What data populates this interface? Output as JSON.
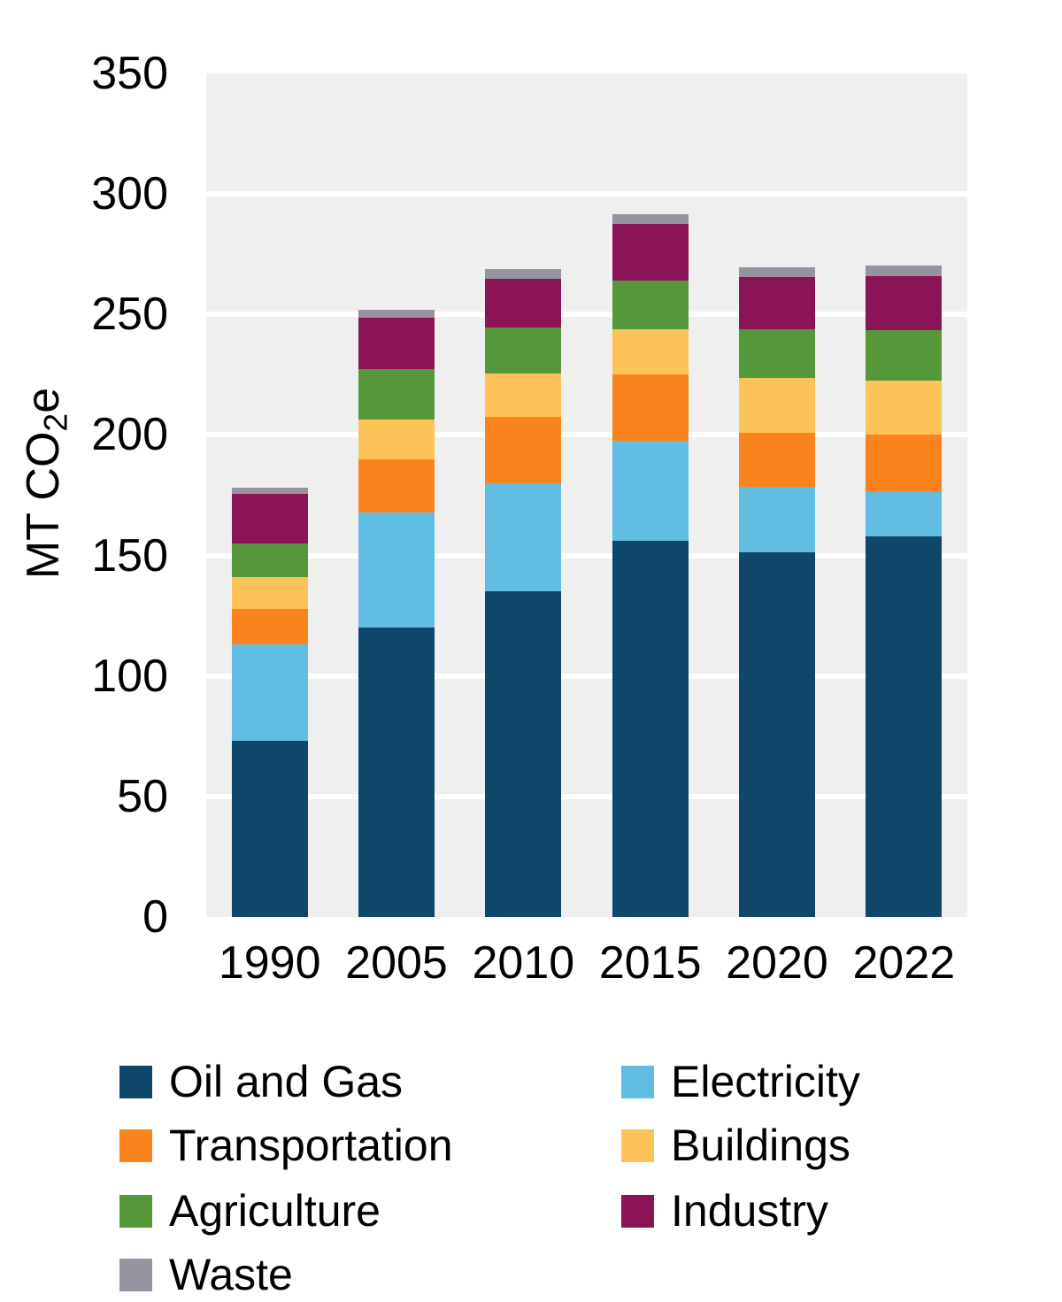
{
  "colors": {
    "background": "#ffffff",
    "panel_bg": "#f0efef",
    "gridline": "#ffffff",
    "text": "#000000"
  },
  "chart_data": {
    "type": "bar",
    "stacked": true,
    "title": "",
    "ylabel": "MT CO2e",
    "ylabel_parts": {
      "prefix": "MT CO",
      "sub": "2",
      "suffix": "e"
    },
    "xlabel": "",
    "categories": [
      "1990",
      "2005",
      "2010",
      "2015",
      "2020",
      "2022"
    ],
    "series": [
      {
        "name": "Oil and Gas",
        "color": "#0f476a",
        "values": [
          73,
          120,
          135,
          156,
          151.5,
          158
        ]
      },
      {
        "name": "Electricity",
        "color": "#62bde3",
        "values": [
          40,
          48,
          45,
          41.5,
          27,
          18.5
        ]
      },
      {
        "name": "Transportation",
        "color": "#fb831d",
        "values": [
          15,
          22,
          27.5,
          27.5,
          22.5,
          23.5
        ]
      },
      {
        "name": "Buildings",
        "color": "#fdc258",
        "values": [
          13,
          16.5,
          18,
          19,
          22.5,
          22.5
        ]
      },
      {
        "name": "Agriculture",
        "color": "#54983a",
        "values": [
          14,
          21,
          19,
          20,
          20.5,
          21
        ]
      },
      {
        "name": "Industry",
        "color": "#8b1457",
        "values": [
          20.5,
          21,
          20.5,
          23.5,
          21.5,
          22.5
        ]
      },
      {
        "name": "Waste",
        "color": "#96939e",
        "values": [
          2.5,
          3.5,
          4,
          4,
          4,
          4.5
        ]
      }
    ],
    "totals": [
      178,
      252,
      269,
      291.5,
      269.5,
      270.5
    ],
    "ylim": [
      0,
      350
    ],
    "yticks": [
      0,
      50,
      100,
      150,
      200,
      250,
      300,
      350
    ],
    "grid": "horizontal-white-lines",
    "legend_position": "bottom-left",
    "legend_columns": [
      [
        "Oil and Gas",
        "Transportation",
        "Agriculture",
        "Waste"
      ],
      [
        "Electricity",
        "Buildings",
        "Industry"
      ]
    ]
  }
}
